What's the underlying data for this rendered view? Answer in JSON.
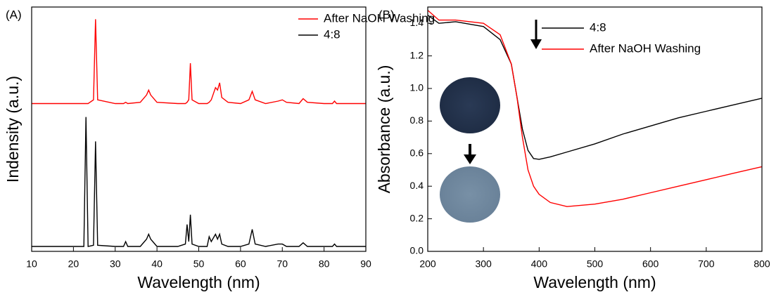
{
  "chart_data": [
    {
      "type": "line",
      "panel_label": "(A)",
      "xlabel": "Wavelength (nm)",
      "ylabel": "Indensity (a.u.)",
      "xlim": [
        10,
        90
      ],
      "xticks": [
        10,
        20,
        30,
        40,
        50,
        60,
        70,
        80,
        90
      ],
      "ylim": [
        0,
        100
      ],
      "legend": "upper right",
      "x": [
        10,
        15,
        20,
        22.5,
        23,
        23.5,
        24.8,
        25.3,
        25.8,
        30,
        32,
        32.5,
        33,
        36,
        37.5,
        38,
        38.5,
        40,
        45,
        46.8,
        47.2,
        47.6,
        48,
        48.4,
        50,
        52,
        52.5,
        53,
        54,
        54.5,
        55,
        55.5,
        57,
        60,
        62,
        62.8,
        63.5,
        66,
        69,
        70,
        71,
        74,
        75,
        76,
        80,
        82,
        82.5,
        83,
        90
      ],
      "series": [
        {
          "name": "After NaOH Washing",
          "color": "#ff0000",
          "values": [
            60.5,
            60.5,
            60.5,
            60.5,
            60.5,
            60.5,
            62,
            95,
            62,
            60.5,
            60.5,
            61,
            60.5,
            61,
            64,
            66,
            64,
            61,
            60.5,
            60.5,
            61,
            62,
            77,
            62,
            60.5,
            60.5,
            61,
            62,
            67,
            66,
            69,
            63,
            61,
            60.5,
            62,
            65.5,
            62,
            60.5,
            61.5,
            62,
            61,
            60.5,
            62.5,
            61,
            60.5,
            60.5,
            61.5,
            60.5,
            60.5
          ]
        },
        {
          "name": "4:8",
          "color": "#000000",
          "values": [
            2,
            2,
            2,
            2,
            55,
            2,
            2.5,
            45,
            2.5,
            2,
            2,
            4,
            2,
            2,
            5,
            7,
            5,
            2,
            2,
            3,
            11,
            4,
            15,
            3,
            2,
            2,
            6,
            4,
            7,
            5,
            7,
            3,
            2,
            2,
            3,
            9,
            3,
            2,
            3,
            3,
            2,
            2,
            3.5,
            2,
            2,
            2,
            3,
            2,
            2
          ]
        }
      ]
    },
    {
      "type": "line",
      "panel_label": "(B)",
      "xlabel": "Wavelength (nm)",
      "ylabel": "Absorbance (a.u.)",
      "xlim": [
        200,
        800
      ],
      "xticks": [
        200,
        300,
        400,
        500,
        600,
        700,
        800
      ],
      "ylim": [
        0,
        1.5
      ],
      "yticks": [
        {
          "value": 0,
          "label": "0.0"
        },
        0.2,
        0.4,
        0.6,
        0.8,
        {
          "value": 1,
          "label": "1.0"
        },
        1.2,
        1.4
      ],
      "legend": "upper center",
      "x": [
        200,
        220,
        250,
        300,
        330,
        350,
        360,
        370,
        380,
        390,
        400,
        420,
        450,
        500,
        550,
        600,
        650,
        700,
        750,
        800
      ],
      "series": [
        {
          "name": "4:8",
          "color": "#000000",
          "values": [
            1.45,
            1.4,
            1.41,
            1.38,
            1.3,
            1.15,
            0.95,
            0.75,
            0.62,
            0.57,
            0.565,
            0.58,
            0.61,
            0.66,
            0.72,
            0.77,
            0.82,
            0.86,
            0.9,
            0.94
          ]
        },
        {
          "name": "After NaOH Washing",
          "color": "#ff0000",
          "values": [
            1.48,
            1.42,
            1.42,
            1.4,
            1.33,
            1.15,
            0.95,
            0.7,
            0.5,
            0.4,
            0.35,
            0.3,
            0.275,
            0.29,
            0.32,
            0.36,
            0.4,
            0.44,
            0.48,
            0.52
          ]
        }
      ]
    }
  ]
}
